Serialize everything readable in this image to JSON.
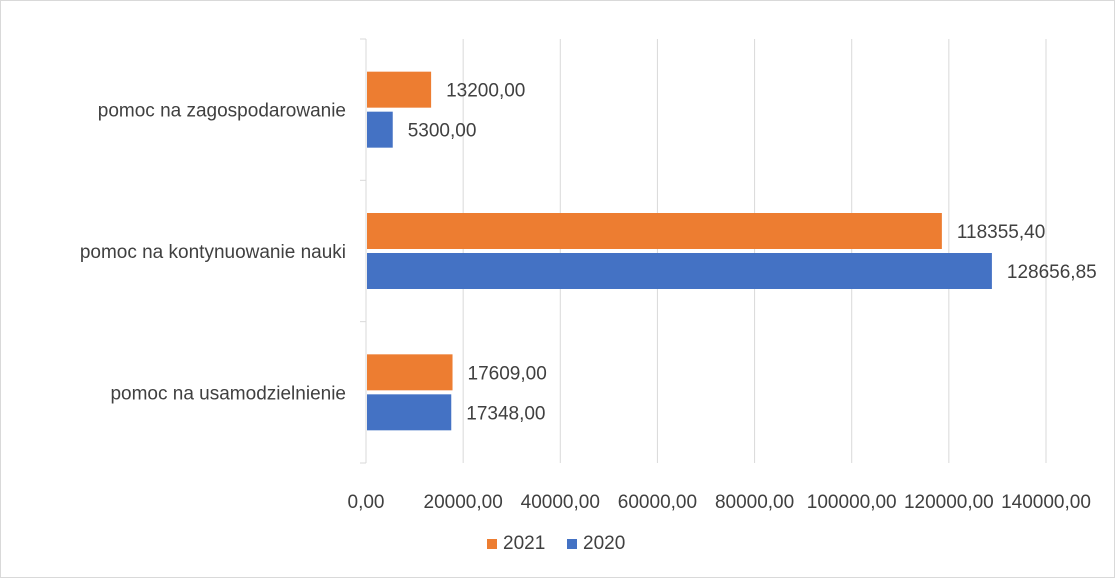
{
  "chart_data": {
    "type": "bar",
    "orientation": "horizontal",
    "title": "",
    "xlabel": "",
    "ylabel": "",
    "categories": [
      "pomoc na zagospodarowanie",
      "pomoc  na kontynuowanie nauki",
      "pomoc  na usamodzielnienie"
    ],
    "series": [
      {
        "name": "2021",
        "color": "#ED7D31",
        "values": [
          13200.0,
          118355.4,
          17609.0
        ],
        "labels": [
          "13200,00",
          "118355,40",
          "17609,00"
        ]
      },
      {
        "name": "2020",
        "color": "#4472C4",
        "values": [
          5300.0,
          128656.85,
          17348.0
        ],
        "labels": [
          "5300,00",
          "128656,85",
          "17348,00"
        ]
      }
    ],
    "xlim": [
      0,
      140000
    ],
    "xticks": [
      0,
      20000,
      40000,
      60000,
      80000,
      100000,
      120000,
      140000
    ],
    "xtick_labels": [
      "0,00",
      "20000,00",
      "40000,00",
      "60000,00",
      "80000,00",
      "100000,00",
      "120000,00",
      "140000,00"
    ],
    "grid": "vertical",
    "legend": "bottom"
  }
}
